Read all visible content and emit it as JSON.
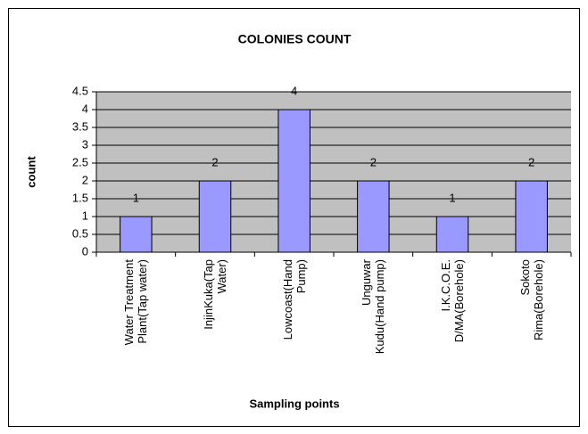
{
  "chart_data": {
    "type": "bar",
    "title": "COLONIES COUNT",
    "xlabel": "Sampling points",
    "ylabel": "count",
    "categories": [
      "Water Treatment Plant(Tap water)",
      "InjinKuka(Tap Water)",
      "Lowcoast(Hand Pump)",
      "Unguwar Kudu(Hand pump)",
      "I.K.C.O.E. D/MA(Borehole)",
      "Sokoto Rima(Borehole)"
    ],
    "values": [
      1,
      2,
      4,
      2,
      1,
      2
    ],
    "color": "#9999ff",
    "ylim": [
      0,
      4.5
    ],
    "yticks": [
      0,
      0.5,
      1,
      1.5,
      2,
      2.5,
      3,
      3.5,
      4,
      4.5
    ],
    "grid": true
  }
}
